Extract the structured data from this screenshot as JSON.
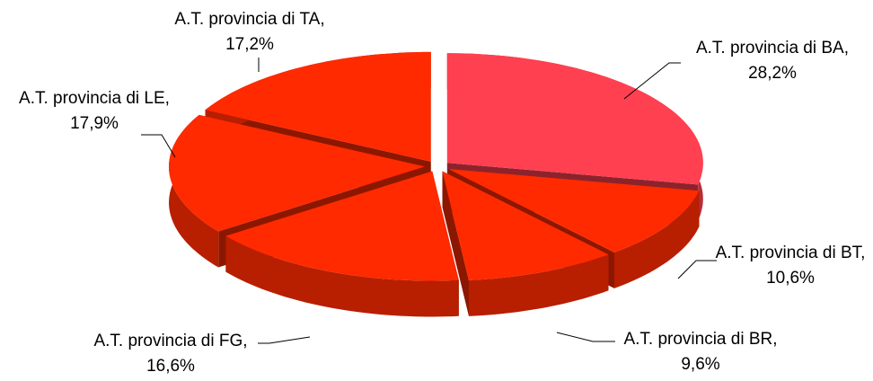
{
  "chart_data": {
    "type": "pie3d",
    "categories": [
      "A.T. provincia di BA",
      "A.T. provincia di BT",
      "A.T. provincia di BR",
      "A.T. provincia di FG",
      "A.T. provincia di LE",
      "A.T. provincia di TA"
    ],
    "values": [
      28.2,
      10.6,
      9.6,
      16.6,
      17.9,
      17.2
    ],
    "value_labels": [
      "28,2%",
      "10,6%",
      "9,6%",
      "16,6%",
      "17,9%",
      "17,2%"
    ],
    "colors": [
      "#ff4050",
      "#ff2a00",
      "#ff2a00",
      "#ff2a00",
      "#ff2a00",
      "#ff2a00"
    ]
  }
}
